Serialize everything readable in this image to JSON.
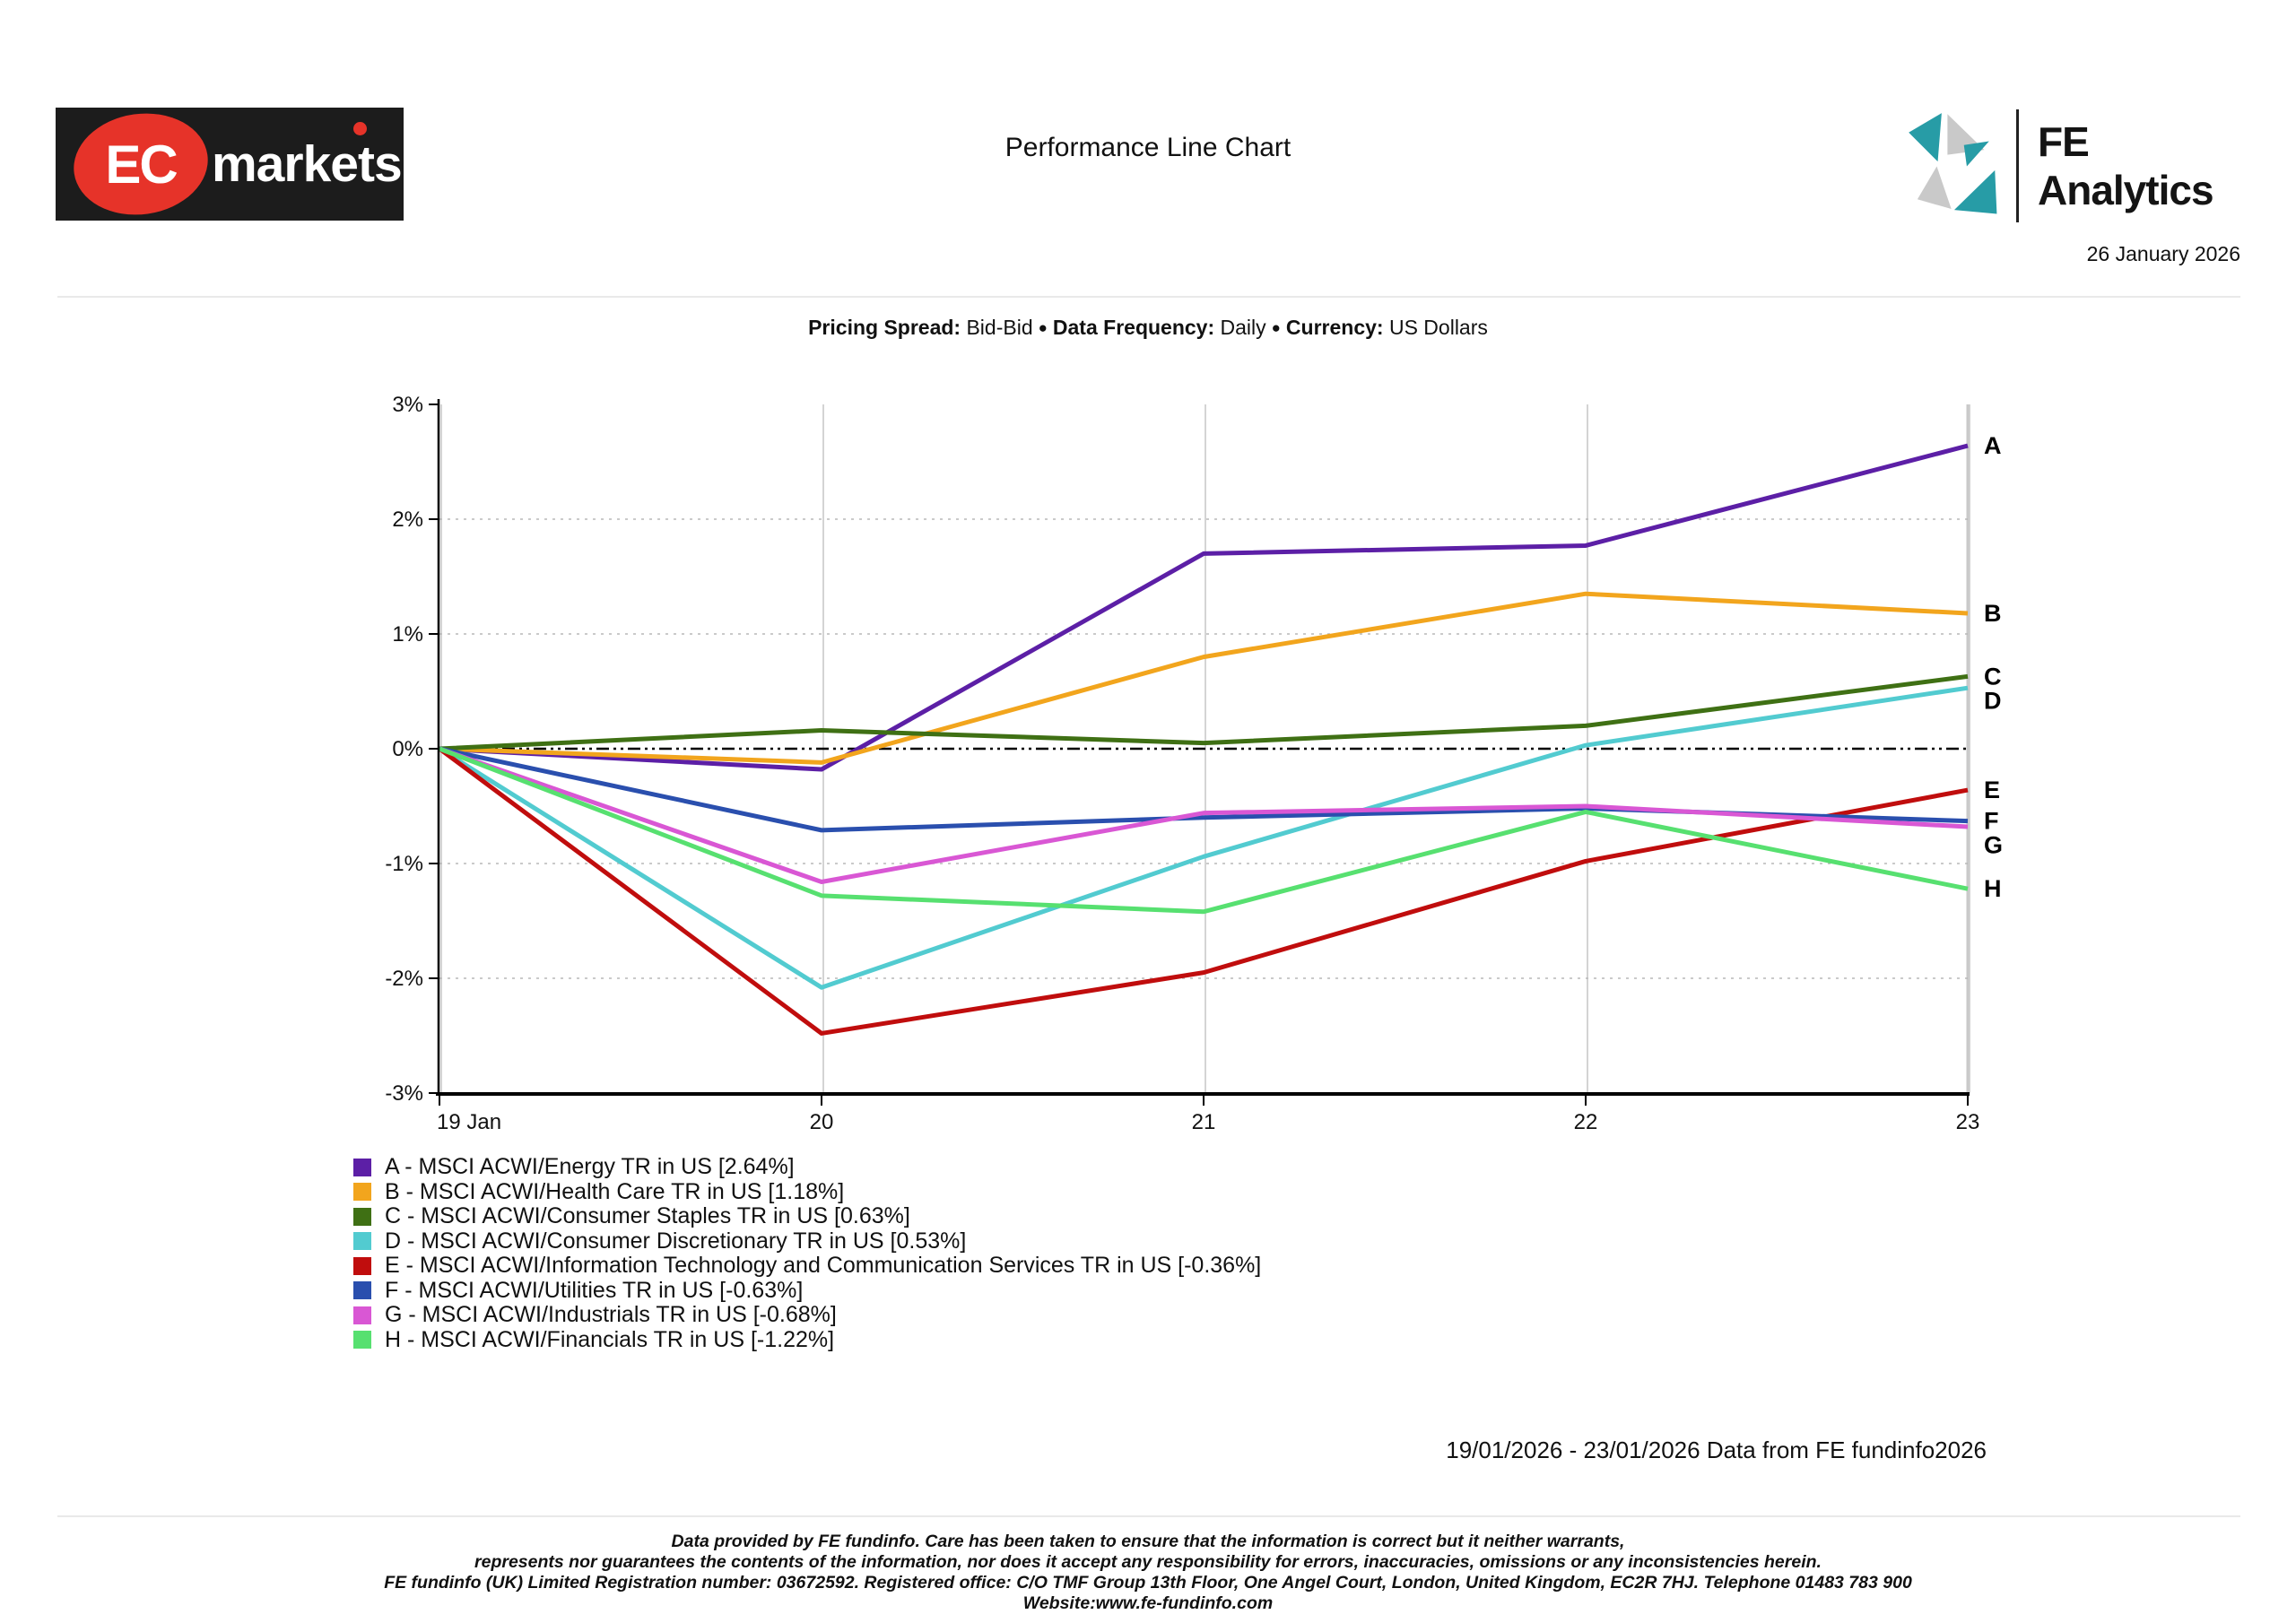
{
  "header": {
    "title": "Performance Line Chart",
    "date": "26 January 2026",
    "ec_logo": {
      "ec": "EC",
      "markets": "markets"
    },
    "fe_logo": {
      "brand": "FE Analytics"
    }
  },
  "subtitle": {
    "bullet": "●",
    "segments": [
      {
        "label": "Pricing Spread:",
        "value": "Bid-Bid"
      },
      {
        "label": "Data Frequency:",
        "value": "Daily"
      },
      {
        "label": "Currency:",
        "value": "US Dollars"
      }
    ]
  },
  "chart_data": {
    "type": "line",
    "x": [
      "19 Jan",
      "20",
      "21",
      "22",
      "23"
    ],
    "ylim": [
      -3,
      3
    ],
    "y_ticks": [
      {
        "value": 3,
        "label": "3%"
      },
      {
        "value": 2,
        "label": "2%"
      },
      {
        "value": 1,
        "label": "1%"
      },
      {
        "value": 0,
        "label": "0%"
      },
      {
        "value": -1,
        "label": "-1%"
      },
      {
        "value": -2,
        "label": "-2%"
      },
      {
        "value": -3,
        "label": "-3%"
      }
    ],
    "grid": true,
    "legend_position": "bottom-left",
    "series": [
      {
        "letter": "A",
        "name": "MSCI ACWI/Energy TR in US",
        "final": "2.64%",
        "color": "#5c1fa6",
        "values": [
          0,
          -0.18,
          1.7,
          1.77,
          2.64
        ],
        "label": "A - MSCI ACWI/Energy TR in US [2.64%]"
      },
      {
        "letter": "B",
        "name": "MSCI ACWI/Health Care TR in US",
        "final": "1.18%",
        "color": "#f2a51d",
        "values": [
          0,
          -0.12,
          0.8,
          1.35,
          1.18
        ],
        "label": "B - MSCI ACWI/Health Care TR in US [1.18%]"
      },
      {
        "letter": "C",
        "name": "MSCI ACWI/Consumer Staples TR in US",
        "final": "0.63%",
        "color": "#3f7014",
        "values": [
          0,
          0.16,
          0.05,
          0.2,
          0.63
        ],
        "label": "C - MSCI ACWI/Consumer Staples TR in US [0.63%]"
      },
      {
        "letter": "D",
        "name": "MSCI ACWI/Consumer Discretionary TR in US",
        "final": "0.53%",
        "color": "#52cbd0",
        "values": [
          0,
          -2.08,
          -0.94,
          0.03,
          0.53
        ],
        "label": "D - MSCI ACWI/Consumer Discretionary TR in US [0.53%]"
      },
      {
        "letter": "E",
        "name": "MSCI ACWI/Information Technology and Communication Services TR in US",
        "final": "-0.36%",
        "color": "#c00d0d",
        "values": [
          0,
          -2.48,
          -1.95,
          -0.98,
          -0.36
        ],
        "label": "E - MSCI ACWI/Information Technology and Communication Services TR in US [-0.36%]"
      },
      {
        "letter": "F",
        "name": "MSCI ACWI/Utilities TR in US",
        "final": "-0.63%",
        "color": "#2a4fae",
        "values": [
          0,
          -0.71,
          -0.6,
          -0.52,
          -0.63
        ],
        "label": "F - MSCI ACWI/Utilities TR in US [-0.63%]"
      },
      {
        "letter": "G",
        "name": "MSCI ACWI/Industrials TR in US",
        "final": "-0.68%",
        "color": "#d957d4",
        "values": [
          0,
          -1.16,
          -0.56,
          -0.5,
          -0.68
        ],
        "label": "G - MSCI ACWI/Industrials TR in US [-0.68%]"
      },
      {
        "letter": "H",
        "name": "MSCI ACWI/Financials TR in US",
        "final": "-1.22%",
        "color": "#57e070",
        "values": [
          0,
          -1.28,
          -1.42,
          -0.55,
          -1.22
        ],
        "label": "H - MSCI ACWI/Financials TR in US [-1.22%]"
      }
    ]
  },
  "range_note": "19/01/2026 - 23/01/2026 Data from FE fundinfo2026",
  "footer": {
    "lines": [
      "Data provided by FE fundinfo. Care has been taken to ensure that the information is correct but it neither warrants,",
      "represents nor guarantees the contents of the information, nor does it accept any responsibility for errors, inaccuracies, omissions or any inconsistencies herein.",
      "FE fundinfo (UK) Limited Registration number: 03672592. Registered office: C/O TMF Group 13th Floor, One Angel Court, London, United Kingdom, EC2R 7HJ. Telephone 01483 783 900",
      "Website:www.fe-fundinfo.com"
    ]
  },
  "colors": {
    "ec_red": "#e63329",
    "fe_teal": "#279ca6",
    "fe_gray": "#c9c9c9",
    "grid_dotted": "#b8b8b8",
    "grid_vertical": "#d4d4d4",
    "axis": "#000000"
  }
}
